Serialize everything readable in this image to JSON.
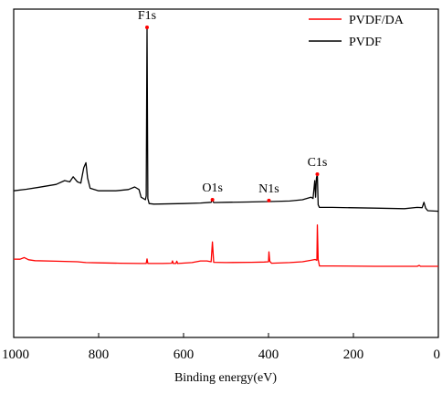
{
  "chart_data": {
    "type": "line",
    "title": "",
    "xlabel": "Binding energy(eV)",
    "ylabel": "",
    "xlim": [
      1000,
      0
    ],
    "x_reversed": true,
    "x_ticks": [
      1000,
      800,
      600,
      400,
      200,
      0
    ],
    "y_ticks": [],
    "grid": false,
    "legend_position": "top-right",
    "peak_labels": [
      {
        "text": "F1s",
        "x": 686,
        "series": "PVDF"
      },
      {
        "text": "O1s",
        "x": 532,
        "series": "PVDF"
      },
      {
        "text": "N1s",
        "x": 399,
        "series": "PVDF"
      },
      {
        "text": "C1s",
        "x": 285,
        "series": "PVDF"
      }
    ],
    "series": [
      {
        "name": "PVDF/DA",
        "color": "#ff0000",
        "points": [
          [
            1000,
            0.95
          ],
          [
            985,
            0.9
          ],
          [
            975,
            1.5
          ],
          [
            965,
            0.7
          ],
          [
            950,
            0.4
          ],
          [
            900,
            0.2
          ],
          [
            850,
            0.0
          ],
          [
            830,
            -0.3
          ],
          [
            800,
            -0.4
          ],
          [
            750,
            -0.5
          ],
          [
            700,
            -0.6
          ],
          [
            688,
            -0.6
          ],
          [
            686,
            1.0
          ],
          [
            684,
            -0.6
          ],
          [
            650,
            -0.6
          ],
          [
            628,
            -0.5
          ],
          [
            626,
            0.3
          ],
          [
            624,
            -0.6
          ],
          [
            618,
            -0.6
          ],
          [
            616,
            0.2
          ],
          [
            614,
            -0.6
          ],
          [
            580,
            -0.3
          ],
          [
            560,
            0.3
          ],
          [
            545,
            0.3
          ],
          [
            535,
            0.0
          ],
          [
            532,
            7.0
          ],
          [
            529,
            -0.2
          ],
          [
            500,
            -0.3
          ],
          [
            440,
            -0.2
          ],
          [
            410,
            -0.1
          ],
          [
            400,
            0.0
          ],
          [
            399,
            3.5
          ],
          [
            397,
            0.2
          ],
          [
            393,
            -0.5
          ],
          [
            350,
            -0.3
          ],
          [
            320,
            0.0
          ],
          [
            300,
            0.5
          ],
          [
            290,
            0.8
          ],
          [
            286,
            0.5
          ],
          [
            285,
            13.0
          ],
          [
            283,
            0.8
          ],
          [
            280,
            -1.5
          ],
          [
            250,
            -1.5
          ],
          [
            150,
            -1.6
          ],
          [
            50,
            -1.6
          ],
          [
            45,
            -1.3
          ],
          [
            42,
            -1.6
          ],
          [
            0,
            -1.6
          ]
        ]
      },
      {
        "name": "PVDF",
        "color": "#000000",
        "points": [
          [
            1000,
            1.0
          ],
          [
            970,
            1.6
          ],
          [
            940,
            2.4
          ],
          [
            900,
            3.5
          ],
          [
            880,
            5.0
          ],
          [
            868,
            4.5
          ],
          [
            860,
            6.5
          ],
          [
            850,
            4.5
          ],
          [
            842,
            4.0
          ],
          [
            835,
            10.0
          ],
          [
            830,
            12.0
          ],
          [
            826,
            6.0
          ],
          [
            820,
            2.0
          ],
          [
            800,
            1.0
          ],
          [
            760,
            1.0
          ],
          [
            730,
            1.5
          ],
          [
            715,
            2.5
          ],
          [
            705,
            1.5
          ],
          [
            700,
            -1.5
          ],
          [
            690,
            -2.5
          ],
          [
            688,
            -1.0
          ],
          [
            686,
            65.0
          ],
          [
            684,
            -2.0
          ],
          [
            681,
            -4.0
          ],
          [
            670,
            -4.2
          ],
          [
            600,
            -4.0
          ],
          [
            560,
            -3.8
          ],
          [
            535,
            -3.5
          ],
          [
            532,
            -2.5
          ],
          [
            529,
            -3.6
          ],
          [
            500,
            -3.5
          ],
          [
            450,
            -3.4
          ],
          [
            400,
            -3.2
          ],
          [
            399,
            -2.8
          ],
          [
            397,
            -3.2
          ],
          [
            350,
            -3.0
          ],
          [
            320,
            -2.5
          ],
          [
            300,
            -1.5
          ],
          [
            295,
            -2.0
          ],
          [
            291,
            5.0
          ],
          [
            289,
            -1.5
          ],
          [
            287,
            6.0
          ],
          [
            285,
            7.5
          ],
          [
            283,
            -4.5
          ],
          [
            280,
            -5.5
          ],
          [
            250,
            -5.5
          ],
          [
            150,
            -5.8
          ],
          [
            80,
            -6.0
          ],
          [
            50,
            -5.5
          ],
          [
            38,
            -5.6
          ],
          [
            34,
            -3.5
          ],
          [
            30,
            -5.8
          ],
          [
            25,
            -6.8
          ],
          [
            0,
            -7.0
          ]
        ]
      }
    ]
  }
}
